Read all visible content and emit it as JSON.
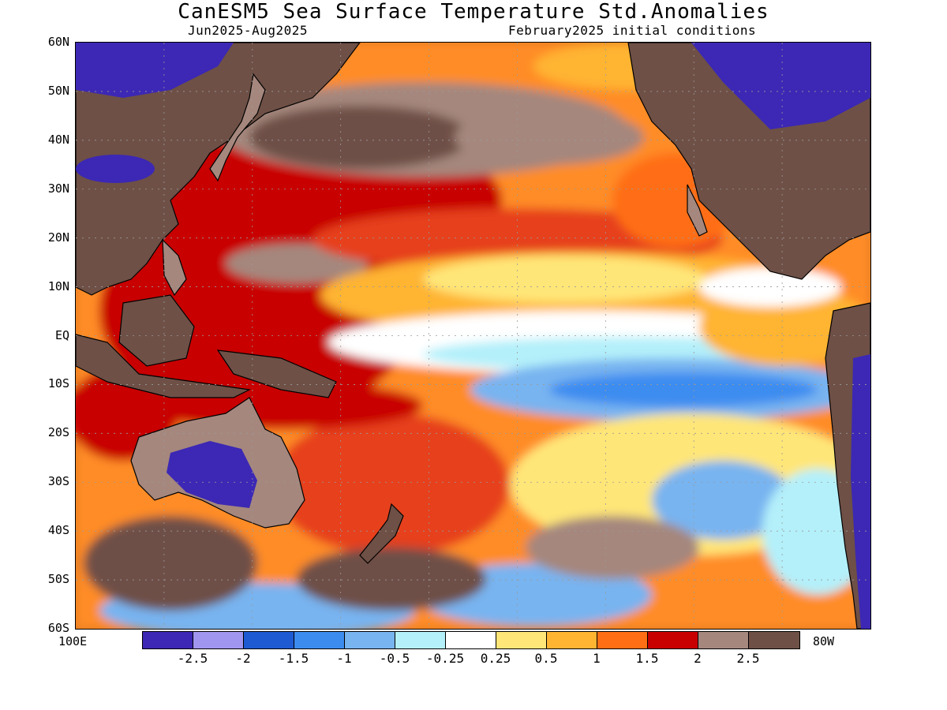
{
  "title": "CanESM5 Sea Surface Temperature Std.Anomalies",
  "subtitle_left": "Jun2025-Aug2025",
  "subtitle_right": "February2025 initial conditions",
  "map": {
    "lat_labels": [
      "60N",
      "50N",
      "40N",
      "30N",
      "20N",
      "10N",
      "EQ",
      "10S",
      "20S",
      "30S",
      "40S",
      "50S",
      "60S"
    ],
    "lon_left": "100E",
    "lon_right": "80W"
  },
  "colorbar": {
    "colors": [
      "#3c28b4",
      "#a096f0",
      "#1e5ad2",
      "#3c8cf0",
      "#78b4f0",
      "#b4f0fa",
      "#ffffff",
      "#ffe678",
      "#ffb432",
      "#ff6e14",
      "#c80000",
      "#a5877d",
      "#6e5046"
    ],
    "labels": [
      "-2.5",
      "-2",
      "-1.5",
      "-1",
      "-0.5",
      "-0.25",
      "0.25",
      "0.5",
      "1",
      "1.5",
      "2",
      "2.5"
    ]
  },
  "palette": {
    "land": "#6e5046",
    "land_cold": "#3c28b4",
    "coast": "#000000"
  }
}
